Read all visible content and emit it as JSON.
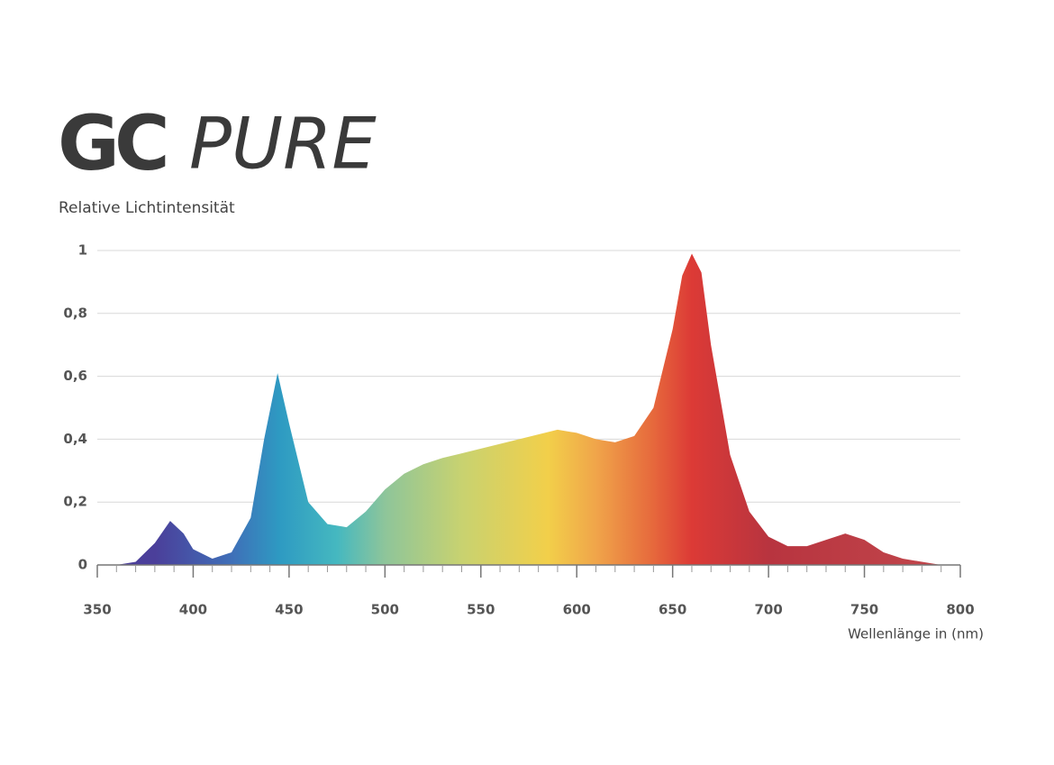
{
  "chart_data": {
    "type": "area",
    "logo_mark": "GC",
    "logo_text": "PURE",
    "y_label": "Relative Lichtintensität",
    "x_label": "Wellenlänge in (nm)",
    "x": [
      360,
      370,
      380,
      388,
      395,
      400,
      410,
      420,
      430,
      437,
      444,
      450,
      460,
      470,
      480,
      490,
      500,
      510,
      520,
      530,
      550,
      570,
      590,
      600,
      610,
      620,
      630,
      640,
      650,
      655,
      660,
      665,
      670,
      680,
      690,
      700,
      710,
      720,
      730,
      740,
      750,
      760,
      770,
      780,
      790
    ],
    "values": [
      0,
      0.01,
      0.07,
      0.14,
      0.1,
      0.05,
      0.02,
      0.04,
      0.15,
      0.4,
      0.61,
      0.45,
      0.2,
      0.13,
      0.12,
      0.17,
      0.24,
      0.29,
      0.32,
      0.34,
      0.37,
      0.4,
      0.43,
      0.42,
      0.4,
      0.39,
      0.41,
      0.5,
      0.75,
      0.92,
      0.99,
      0.93,
      0.7,
      0.35,
      0.17,
      0.09,
      0.06,
      0.06,
      0.08,
      0.1,
      0.08,
      0.04,
      0.02,
      0.01,
      0
    ],
    "color_stops": [
      {
        "x": 380,
        "color": "#4b3f9a"
      },
      {
        "x": 420,
        "color": "#3f6fb8"
      },
      {
        "x": 445,
        "color": "#2e9ac2"
      },
      {
        "x": 475,
        "color": "#45b8c0"
      },
      {
        "x": 500,
        "color": "#8ec59a"
      },
      {
        "x": 540,
        "color": "#c8d270"
      },
      {
        "x": 585,
        "color": "#f2cf4a"
      },
      {
        "x": 610,
        "color": "#f0a54a"
      },
      {
        "x": 640,
        "color": "#e6683c"
      },
      {
        "x": 660,
        "color": "#dc3a36"
      },
      {
        "x": 700,
        "color": "#b8343f"
      },
      {
        "x": 780,
        "color": "#c0444a"
      }
    ],
    "xlim": [
      350,
      800
    ],
    "xticks": [
      350,
      400,
      450,
      500,
      550,
      600,
      650,
      700,
      750,
      800
    ],
    "ylim": [
      0,
      1
    ],
    "yticks": [
      0,
      {
        "value": 0.2,
        "label": "0,2"
      },
      {
        "value": 0.4,
        "label": "0,4"
      },
      {
        "value": 0.6,
        "label": "0,6"
      },
      {
        "value": 0.8,
        "label": "0,8"
      },
      1
    ],
    "grid": true
  }
}
